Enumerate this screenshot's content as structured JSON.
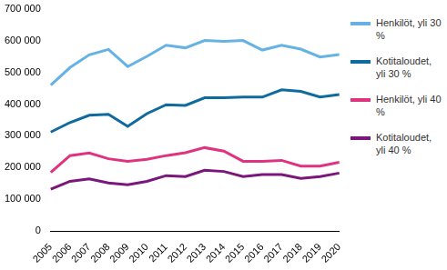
{
  "chart_data": {
    "type": "line",
    "categories": [
      "2005",
      "2006",
      "2007",
      "2008",
      "2009",
      "2010",
      "2011",
      "2012",
      "2013",
      "2014",
      "2015",
      "2016",
      "2017",
      "2018",
      "2019",
      "2020"
    ],
    "series": [
      {
        "name": "Henkilöt, yli 30 %",
        "color": "#66b2e4",
        "values": [
          460000,
          515000,
          555000,
          572000,
          518000,
          550000,
          585000,
          577000,
          600000,
          597000,
          600000,
          570000,
          585000,
          573000,
          548000,
          556000
        ]
      },
      {
        "name": "Kotitaloudet, yli 30 %",
        "color": "#0f6a9e",
        "values": [
          312000,
          342000,
          365000,
          368000,
          330000,
          370000,
          398000,
          396000,
          420000,
          420000,
          422000,
          422000,
          445000,
          440000,
          422000,
          430000
        ]
      },
      {
        "name": "Henkilöt, yli 40 %",
        "color": "#e0337f",
        "values": [
          185000,
          238000,
          246000,
          228000,
          220000,
          226000,
          238000,
          247000,
          263000,
          252000,
          220000,
          220000,
          223000,
          205000,
          205000,
          217000
        ]
      },
      {
        "name": "Kotitaloudet, yli 40 %",
        "color": "#7b167c",
        "values": [
          132000,
          157000,
          165000,
          152000,
          146000,
          157000,
          175000,
          172000,
          192000,
          188000,
          172000,
          178000,
          178000,
          166000,
          172000,
          183000
        ]
      }
    ],
    "ylim": [
      0,
      700000
    ],
    "yticks": [
      0,
      {
        "value": 100000,
        "label": "100 000"
      },
      {
        "value": 200000,
        "label": "200 000"
      },
      {
        "value": 300000,
        "label": "300 000"
      },
      {
        "value": 400000,
        "label": "400 000"
      },
      {
        "value": 500000,
        "label": "500 000"
      },
      {
        "value": 600000,
        "label": "600 000"
      },
      {
        "value": 700000,
        "label": "700 000"
      }
    ],
    "grid": false,
    "legend": "right"
  }
}
